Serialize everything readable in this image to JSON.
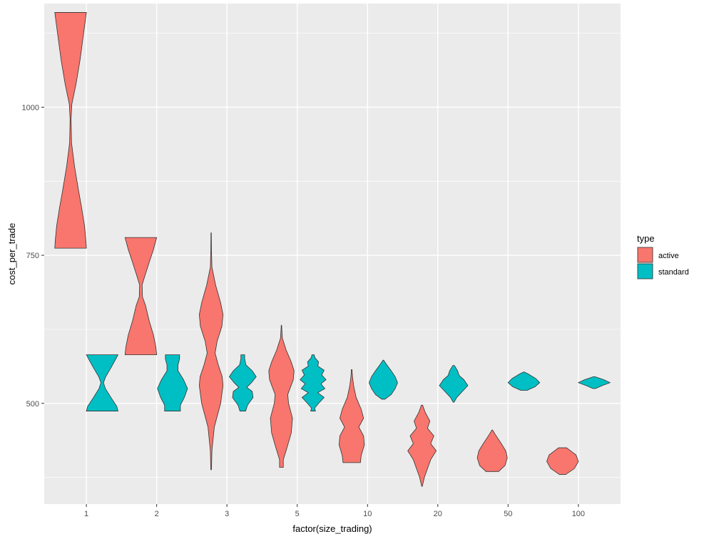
{
  "chart_data": {
    "type": "violin",
    "xlabel": "factor(size_trading)",
    "ylabel": "cost_per_trade",
    "categories": [
      "1",
      "2",
      "3",
      "5",
      "10",
      "20",
      "50",
      "100"
    ],
    "y_ticks": [
      500,
      750,
      1000
    ],
    "ylim": [
      330,
      1175
    ],
    "grid": true,
    "legend": {
      "title": "type",
      "position": "right",
      "entries": [
        {
          "label": "active",
          "color": "#F8766D"
        },
        {
          "label": "standard",
          "color": "#00BFC4"
        }
      ]
    },
    "series": [
      {
        "name": "active",
        "color": "#F8766D",
        "violins": [
          {
            "category": "1",
            "profile": [
              [
                762,
                1.0
              ],
              [
                775,
                0.97
              ],
              [
                800,
                0.88
              ],
              [
                830,
                0.7
              ],
              [
                860,
                0.5
              ],
              [
                900,
                0.25
              ],
              [
                940,
                0.06
              ],
              [
                980,
                0.03
              ],
              [
                1005,
                0.08
              ],
              [
                1040,
                0.35
              ],
              [
                1080,
                0.6
              ],
              [
                1120,
                0.8
              ],
              [
                1160,
                1.0
              ]
            ]
          },
          {
            "category": "2",
            "profile": [
              [
                582,
                1.0
              ],
              [
                595,
                0.95
              ],
              [
                615,
                0.8
              ],
              [
                640,
                0.52
              ],
              [
                665,
                0.3
              ],
              [
                680,
                0.1
              ],
              [
                700,
                0.08
              ],
              [
                715,
                0.25
              ],
              [
                740,
                0.55
              ],
              [
                760,
                0.8
              ],
              [
                780,
                1.0
              ]
            ]
          },
          {
            "category": "3",
            "profile": [
              [
                388,
                0.02
              ],
              [
                420,
                0.05
              ],
              [
                460,
                0.2
              ],
              [
                500,
                0.6
              ],
              [
                530,
                0.75
              ],
              [
                545,
                0.7
              ],
              [
                565,
                0.45
              ],
              [
                585,
                0.25
              ],
              [
                605,
                0.38
              ],
              [
                630,
                0.68
              ],
              [
                650,
                0.75
              ],
              [
                670,
                0.6
              ],
              [
                700,
                0.28
              ],
              [
                730,
                0.05
              ],
              [
                760,
                0.02
              ],
              [
                788,
                0.01
              ]
            ]
          },
          {
            "category": "5",
            "profile": [
              [
                392,
                0.12
              ],
              [
                405,
                0.12
              ],
              [
                425,
                0.35
              ],
              [
                450,
                0.62
              ],
              [
                475,
                0.7
              ],
              [
                500,
                0.45
              ],
              [
                515,
                0.4
              ],
              [
                540,
                0.75
              ],
              [
                555,
                0.8
              ],
              [
                570,
                0.62
              ],
              [
                590,
                0.3
              ],
              [
                610,
                0.06
              ],
              [
                632,
                0.01
              ]
            ]
          },
          {
            "category": "10",
            "profile": [
              [
                400,
                0.55
              ],
              [
                412,
                0.6
              ],
              [
                430,
                0.8
              ],
              [
                445,
                0.75
              ],
              [
                460,
                0.45
              ],
              [
                475,
                0.75
              ],
              [
                490,
                0.6
              ],
              [
                510,
                0.28
              ],
              [
                530,
                0.12
              ],
              [
                545,
                0.05
              ],
              [
                557,
                0.02
              ]
            ]
          },
          {
            "category": "20",
            "profile": [
              [
                360,
                0.02
              ],
              [
                375,
                0.15
              ],
              [
                390,
                0.35
              ],
              [
                405,
                0.55
              ],
              [
                420,
                0.9
              ],
              [
                432,
                0.55
              ],
              [
                445,
                0.75
              ],
              [
                458,
                0.35
              ],
              [
                470,
                0.5
              ],
              [
                485,
                0.2
              ],
              [
                497,
                0.04
              ]
            ]
          },
          {
            "category": "50",
            "profile": [
              [
                385,
                0.4
              ],
              [
                395,
                0.8
              ],
              [
                408,
                0.95
              ],
              [
                420,
                0.85
              ],
              [
                433,
                0.55
              ],
              [
                447,
                0.2
              ],
              [
                455,
                0.02
              ]
            ]
          },
          {
            "category": "100",
            "profile": [
              [
                380,
                0.2
              ],
              [
                390,
                0.75
              ],
              [
                402,
                1.0
              ],
              [
                413,
                0.85
              ],
              [
                420,
                0.5
              ],
              [
                425,
                0.25
              ]
            ]
          }
        ]
      },
      {
        "name": "standard",
        "color": "#00BFC4",
        "violins": [
          {
            "category": "1",
            "profile": [
              [
                487,
                1.0
              ],
              [
                495,
                0.92
              ],
              [
                510,
                0.55
              ],
              [
                525,
                0.2
              ],
              [
                535,
                0.08
              ],
              [
                545,
                0.22
              ],
              [
                560,
                0.55
              ],
              [
                572,
                0.8
              ],
              [
                582,
                1.0
              ]
            ]
          },
          {
            "category": "2",
            "profile": [
              [
                487,
                0.5
              ],
              [
                497,
                0.5
              ],
              [
                510,
                0.75
              ],
              [
                525,
                0.95
              ],
              [
                540,
                0.7
              ],
              [
                555,
                0.35
              ],
              [
                565,
                0.35
              ],
              [
                575,
                0.45
              ],
              [
                582,
                0.45
              ]
            ]
          },
          {
            "category": "3",
            "profile": [
              [
                487,
                0.18
              ],
              [
                497,
                0.3
              ],
              [
                510,
                0.65
              ],
              [
                520,
                0.6
              ],
              [
                527,
                0.25
              ],
              [
                535,
                0.55
              ],
              [
                545,
                0.85
              ],
              [
                555,
                0.6
              ],
              [
                565,
                0.2
              ],
              [
                575,
                0.12
              ],
              [
                582,
                0.12
              ]
            ]
          },
          {
            "category": "5",
            "profile": [
              [
                487,
                0.15
              ],
              [
                492,
                0.1
              ],
              [
                500,
                0.35
              ],
              [
                510,
                0.7
              ],
              [
                518,
                0.3
              ],
              [
                525,
                0.75
              ],
              [
                533,
                0.5
              ],
              [
                540,
                0.82
              ],
              [
                548,
                0.55
              ],
              [
                556,
                0.7
              ],
              [
                563,
                0.3
              ],
              [
                570,
                0.35
              ],
              [
                577,
                0.12
              ],
              [
                582,
                0.07
              ]
            ]
          },
          {
            "category": "10",
            "profile": [
              [
                507,
                0.1
              ],
              [
                515,
                0.5
              ],
              [
                525,
                0.75
              ],
              [
                535,
                0.9
              ],
              [
                545,
                0.75
              ],
              [
                555,
                0.5
              ],
              [
                565,
                0.22
              ],
              [
                573,
                0.02
              ]
            ]
          },
          {
            "category": "20",
            "profile": [
              [
                502,
                0.03
              ],
              [
                510,
                0.2
              ],
              [
                520,
                0.55
              ],
              [
                530,
                0.9
              ],
              [
                540,
                0.65
              ],
              [
                547,
                0.35
              ],
              [
                555,
                0.25
              ],
              [
                564,
                0.05
              ]
            ]
          },
          {
            "category": "50",
            "profile": [
              [
                522,
                0.2
              ],
              [
                528,
                0.7
              ],
              [
                535,
                1.0
              ],
              [
                542,
                0.75
              ],
              [
                550,
                0.25
              ],
              [
                553,
                0.02
              ]
            ]
          },
          {
            "category": "100",
            "profile": [
              [
                525,
                0.08
              ],
              [
                530,
                0.5
              ],
              [
                535,
                1.0
              ],
              [
                540,
                0.6
              ],
              [
                545,
                0.05
              ]
            ]
          }
        ]
      }
    ]
  }
}
